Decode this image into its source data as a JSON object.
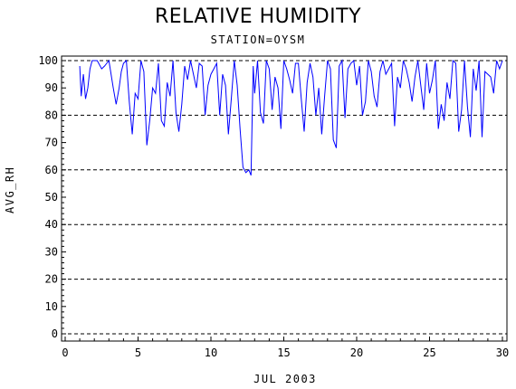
{
  "chart_data": {
    "type": "line",
    "title": "RELATIVE HUMIDITY",
    "subtitle": "STATION=OYSM",
    "xlabel": "JUL 2003",
    "ylabel": "AVG_RH",
    "xlim": [
      0,
      30
    ],
    "ylim": [
      0,
      100
    ],
    "x_ticks": [
      0,
      5,
      10,
      15,
      20,
      25,
      30
    ],
    "y_ticks": [
      0,
      10,
      20,
      30,
      40,
      50,
      60,
      70,
      80,
      90,
      100
    ],
    "reference_lines_y": [
      0,
      20,
      40,
      60,
      80,
      100
    ],
    "line_color": "#0000ff",
    "series": [
      {
        "x": [
          1.0,
          1.1,
          1.25,
          1.4,
          1.55,
          1.7,
          1.85,
          2.0,
          2.2,
          2.5,
          2.7,
          2.85,
          3.0,
          3.3,
          3.5,
          3.7,
          3.85,
          4.0,
          4.2,
          4.4,
          4.6,
          4.8,
          5.0,
          5.2,
          5.4,
          5.6,
          5.8,
          6.0,
          6.2,
          6.4,
          6.6,
          6.8,
          7.0,
          7.2,
          7.4,
          7.6,
          7.8,
          8.0,
          8.2,
          8.4,
          8.6,
          8.8,
          9.0,
          9.2,
          9.4,
          9.6,
          9.8,
          10.0,
          10.2,
          10.4,
          10.6,
          10.8,
          11.0,
          11.2,
          11.4,
          11.6,
          11.8,
          12.0,
          12.2,
          12.4,
          12.6,
          12.75,
          12.9,
          13.0,
          13.2,
          13.4,
          13.6,
          13.8,
          14.0,
          14.2,
          14.4,
          14.6,
          14.8,
          15.0,
          15.2,
          15.4,
          15.6,
          15.8,
          16.0,
          16.2,
          16.4,
          16.6,
          16.8,
          17.0,
          17.2,
          17.4,
          17.6,
          17.8,
          18.0,
          18.2,
          18.4,
          18.6,
          18.8,
          19.0,
          19.2,
          19.4,
          19.6,
          19.8,
          20.0,
          20.2,
          20.4,
          20.6,
          20.8,
          21.0,
          21.2,
          21.4,
          21.6,
          21.8,
          22.0,
          22.2,
          22.4,
          22.6,
          22.8,
          23.0,
          23.2,
          23.4,
          23.6,
          23.8,
          24.0,
          24.2,
          24.4,
          24.6,
          24.8,
          25.0,
          25.2,
          25.4,
          25.6,
          25.8,
          26.0,
          26.2,
          26.4,
          26.6,
          26.8,
          27.0,
          27.2,
          27.4,
          27.6,
          27.8,
          28.0,
          28.2,
          28.4,
          28.6,
          28.8,
          29.0,
          29.2,
          29.4,
          29.6,
          29.8,
          30.0
        ],
        "values": [
          98,
          87,
          95,
          86,
          90,
          97,
          100,
          100,
          100,
          97,
          98,
          99,
          100,
          90,
          84,
          90,
          96,
          99,
          100,
          85,
          73,
          88,
          86,
          100,
          96,
          69,
          78,
          90,
          88,
          99,
          78,
          76,
          92,
          87,
          100,
          81,
          74,
          84,
          98,
          93,
          100,
          95,
          90,
          99,
          98,
          80,
          91,
          95,
          97,
          99,
          80,
          95,
          91,
          73,
          86,
          100,
          91,
          75,
          61,
          59,
          60,
          58,
          98,
          88,
          100,
          81,
          77,
          100,
          97,
          82,
          94,
          90,
          75,
          100,
          97,
          93,
          88,
          99,
          99,
          86,
          74,
          92,
          99,
          94,
          80,
          90,
          73,
          87,
          100,
          97,
          71,
          68,
          98,
          100,
          79,
          97,
          99,
          100,
          91,
          98,
          80,
          85,
          100,
          96,
          87,
          83,
          96,
          100,
          95,
          97,
          99,
          76,
          94,
          90,
          100,
          97,
          92,
          85,
          94,
          100,
          91,
          82,
          99,
          88,
          93,
          100,
          75,
          84,
          78,
          92,
          86,
          100,
          99,
          74,
          82,
          100,
          83,
          72,
          97,
          89,
          100,
          72,
          96,
          95,
          94,
          88,
          100,
          97,
          100
        ]
      }
    ]
  }
}
